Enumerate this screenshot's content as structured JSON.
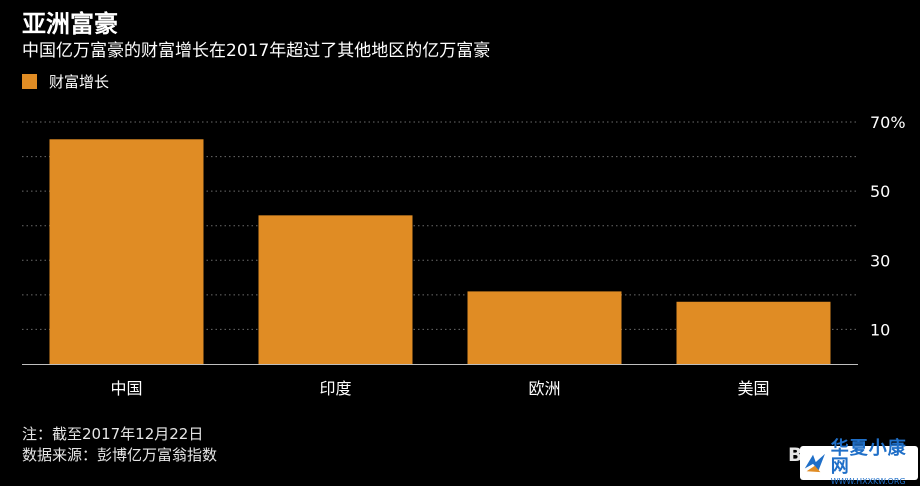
{
  "header": {
    "title": "亚洲富豪",
    "subtitle": "中国亿万富豪的财富增长在2017年超过了其他地区的亿万富豪"
  },
  "colors": {
    "background": "#000000",
    "bar": "#e08c24",
    "gridline": "#6b6b6b",
    "text": "#ffffff"
  },
  "chart_data": {
    "type": "bar",
    "categories": [
      "中国",
      "印度",
      "欧洲",
      "美国"
    ],
    "series": [
      {
        "name": "财富增长",
        "values": [
          65,
          43,
          21,
          18
        ]
      }
    ],
    "ylim": [
      0,
      70
    ],
    "yticks": [
      10,
      30,
      50,
      70
    ],
    "ytick_labels": [
      "10",
      "30",
      "50",
      "70%"
    ],
    "grid": true,
    "legend_position": "top-left",
    "xlabel": "",
    "ylabel": ""
  },
  "footnotes": {
    "note": "注：截至2017年12月22日",
    "source": "数据来源：彭博亿万富翁指数"
  },
  "watermark": "Bl",
  "site_logo": {
    "name": "华夏小康网",
    "url": "WWW.HXXKW.ORG",
    "icon": "site-logo-icon"
  }
}
